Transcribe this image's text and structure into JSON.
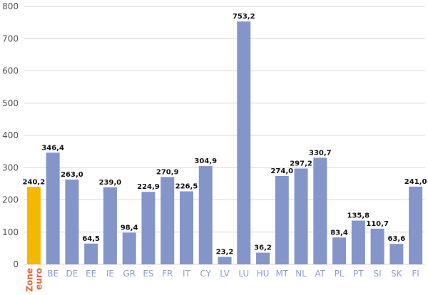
{
  "chart_data": {
    "type": "bar",
    "categories": [
      "Zone euro",
      "BE",
      "DE",
      "EE",
      "IE",
      "GR",
      "ES",
      "FR",
      "IT",
      "CY",
      "LV",
      "LU",
      "HU",
      "MT",
      "NL",
      "AT",
      "PL",
      "PT",
      "SI",
      "SK",
      "FI"
    ],
    "values": [
      240.2,
      346.4,
      263.0,
      64.5,
      239.0,
      98.4,
      224.9,
      270.9,
      226.5,
      304.9,
      23.2,
      753.2,
      36.2,
      274.0,
      297.2,
      330.7,
      83.4,
      135.8,
      110.7,
      63.6,
      241.0
    ],
    "value_labels": [
      "240,2",
      "346,4",
      "263,0",
      "64,5",
      "239,0",
      "98,4",
      "224,9",
      "270,9",
      "226,5",
      "304,9",
      "23,2",
      "753,2",
      "36,2",
      "274,0",
      "297,2",
      "330,7",
      "83,4",
      "135,8",
      "110,7",
      "63,6",
      "241,0"
    ],
    "highlight_category": "Zone euro",
    "highlight_tick_lines": [
      "Zone",
      "euro"
    ],
    "ylim": [
      0,
      800
    ],
    "yticks": [
      0,
      100,
      200,
      300,
      400,
      500,
      600,
      700,
      800
    ],
    "grid": true,
    "legend": "none",
    "colors": {
      "bar": "#8496c9",
      "highlight_bar": "#f5b800",
      "highlight_label": "#e8653a",
      "x_tick": "#8e9ed2",
      "highlight_tick": "#e8653a"
    }
  }
}
